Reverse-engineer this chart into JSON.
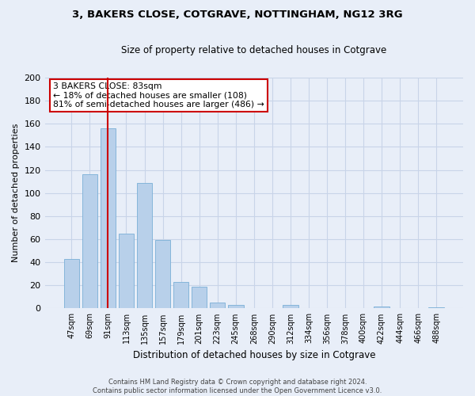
{
  "title1": "3, BAKERS CLOSE, COTGRAVE, NOTTINGHAM, NG12 3RG",
  "title2": "Size of property relative to detached houses in Cotgrave",
  "xlabel": "Distribution of detached houses by size in Cotgrave",
  "ylabel": "Number of detached properties",
  "bar_labels": [
    "47sqm",
    "69sqm",
    "91sqm",
    "113sqm",
    "135sqm",
    "157sqm",
    "179sqm",
    "201sqm",
    "223sqm",
    "245sqm",
    "268sqm",
    "290sqm",
    "312sqm",
    "334sqm",
    "356sqm",
    "378sqm",
    "400sqm",
    "422sqm",
    "444sqm",
    "466sqm",
    "488sqm"
  ],
  "bar_heights": [
    43,
    116,
    156,
    65,
    109,
    59,
    23,
    19,
    5,
    3,
    0,
    0,
    3,
    0,
    0,
    0,
    0,
    2,
    0,
    0,
    1
  ],
  "bar_color": "#b8d0ea",
  "bar_edge_color": "#7aafd6",
  "vline_x": 2,
  "vline_color": "#cc0000",
  "annotation_title": "3 BAKERS CLOSE: 83sqm",
  "annotation_line1": "← 18% of detached houses are smaller (108)",
  "annotation_line2": "81% of semi-detached houses are larger (486) →",
  "annotation_box_color": "#ffffff",
  "annotation_box_edge": "#cc0000",
  "ylim": [
    0,
    200
  ],
  "yticks": [
    0,
    20,
    40,
    60,
    80,
    100,
    120,
    140,
    160,
    180,
    200
  ],
  "footer1": "Contains HM Land Registry data © Crown copyright and database right 2024.",
  "footer2": "Contains public sector information licensed under the Open Government Licence v3.0.",
  "bg_color": "#e8eef8",
  "plot_bg_color": "#e8eef8",
  "grid_color": "#c8d4e8"
}
